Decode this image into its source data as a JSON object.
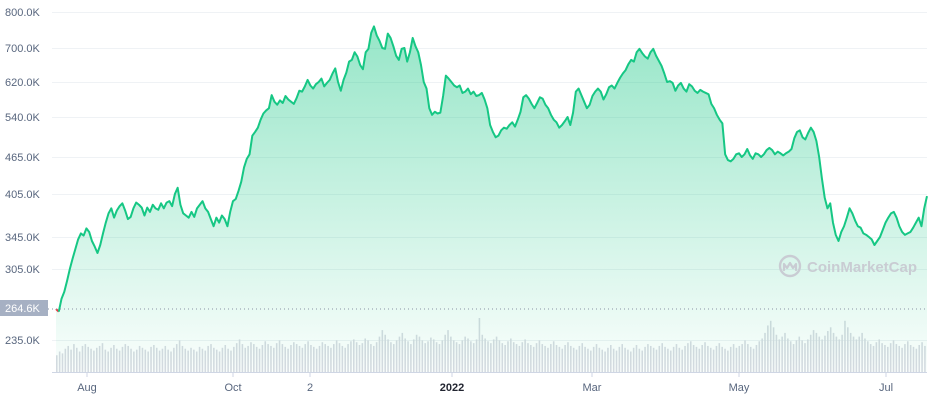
{
  "chart_data": {
    "type": "area",
    "x_tick_labels": [
      "Aug",
      "Oct",
      "2",
      "2022",
      "Mar",
      "May",
      "Jul"
    ],
    "x_tick_bold": [
      "2022"
    ],
    "y_tick_labels": [
      "800.0K",
      "700.0K",
      "620.0K",
      "540.0K",
      "465.0K",
      "405.0K",
      "345.0K",
      "305.0K",
      "235.0K"
    ],
    "current_value_label": "264.6K",
    "watermark": "CoinMarketCap",
    "line_color": "#16c784",
    "down_color": "#ea3943",
    "series": [
      {
        "values": [
          264.6,
          262,
          275,
          282,
          293,
          305,
          318,
          330,
          342,
          350,
          347,
          357,
          352,
          340,
          333,
          325,
          335,
          350,
          365,
          378,
          385,
          372,
          382,
          388,
          392,
          382,
          370,
          373,
          385,
          393,
          390,
          386,
          375,
          386,
          380,
          390,
          385,
          383,
          392,
          385,
          393,
          395,
          388,
          405,
          415,
          390,
          378,
          375,
          372,
          380,
          373,
          385,
          390,
          395,
          385,
          380,
          370,
          360,
          372,
          365,
          375,
          370,
          360,
          380,
          395,
          398,
          410,
          425,
          448,
          462,
          470,
          505,
          512,
          520,
          535,
          548,
          555,
          560,
          590,
          575,
          568,
          578,
          572,
          588,
          580,
          575,
          570,
          583,
          600,
          598,
          610,
          625,
          612,
          605,
          615,
          620,
          628,
          610,
          618,
          625,
          640,
          652,
          620,
          600,
          625,
          642,
          668,
          672,
          690,
          680,
          660,
          650,
          690,
          698,
          742,
          760,
          735,
          720,
          700,
          698,
          740,
          728,
          705,
          682,
          672,
          698,
          700,
          668,
          690,
          728,
          705,
          690,
          660,
          620,
          605,
          560,
          545,
          552,
          548,
          550,
          588,
          635,
          628,
          620,
          612,
          608,
          612,
          595,
          598,
          605,
          592,
          598,
          588,
          590,
          595,
          580,
          560,
          525,
          512,
          502,
          505,
          515,
          520,
          518,
          525,
          530,
          522,
          535,
          552,
          585,
          590,
          582,
          570,
          560,
          572,
          585,
          582,
          568,
          560,
          545,
          535,
          530,
          520,
          525,
          532,
          540,
          525,
          550,
          598,
          605,
          590,
          575,
          560,
          568,
          588,
          598,
          605,
          598,
          580,
          592,
          608,
          612,
          605,
          618,
          630,
          640,
          648,
          662,
          672,
          668,
          690,
          698,
          688,
          680,
          675,
          690,
          698,
          682,
          670,
          658,
          640,
          620,
          622,
          618,
          600,
          612,
          618,
          605,
          598,
          615,
          610,
          600,
          595,
          602,
          598,
          595,
          592,
          570,
          560,
          545,
          535,
          528,
          470,
          460,
          458,
          462,
          470,
          472,
          465,
          470,
          480,
          468,
          462,
          472,
          470,
          465,
          470,
          478,
          482,
          478,
          470,
          475,
          472,
          468,
          472,
          475,
          480,
          500,
          512,
          515,
          502,
          498,
          510,
          520,
          512,
          495,
          465,
          430,
          400,
          385,
          392,
          365,
          348,
          340,
          352,
          360,
          372,
          385,
          378,
          368,
          360,
          358,
          350,
          348,
          345,
          342,
          335,
          340,
          345,
          355,
          365,
          372,
          378,
          380,
          372,
          360,
          352,
          348,
          350,
          352,
          358,
          365,
          372,
          360,
          385,
          402
        ]
      }
    ],
    "volume_bars": [
      18,
      22,
      20,
      25,
      28,
      24,
      30,
      26,
      22,
      28,
      30,
      27,
      25,
      23,
      26,
      28,
      31,
      24,
      22,
      26,
      29,
      25,
      23,
      27,
      30,
      28,
      25,
      22,
      24,
      28,
      26,
      24,
      22,
      27,
      29,
      26,
      23,
      25,
      28,
      24,
      22,
      26,
      30,
      34,
      28,
      25,
      23,
      26,
      24,
      22,
      27,
      25,
      23,
      28,
      30,
      26,
      24,
      22,
      26,
      29,
      25,
      23,
      27,
      31,
      35,
      30,
      26,
      28,
      32,
      30,
      27,
      25,
      29,
      33,
      30,
      28,
      26,
      31,
      34,
      30,
      27,
      25,
      29,
      32,
      30,
      28,
      26,
      30,
      33,
      29,
      27,
      25,
      28,
      32,
      30,
      28,
      26,
      30,
      34,
      31,
      28,
      26,
      30,
      33,
      35,
      32,
      29,
      31,
      36,
      34,
      30,
      28,
      32,
      38,
      45,
      40,
      35,
      32,
      30,
      34,
      38,
      42,
      36,
      33,
      30,
      35,
      40,
      38,
      34,
      31,
      33,
      37,
      35,
      32,
      30,
      34,
      40,
      45,
      38,
      34,
      32,
      30,
      34,
      38,
      36,
      33,
      31,
      35,
      58,
      40,
      36,
      33,
      31,
      35,
      38,
      34,
      31,
      29,
      33,
      36,
      32,
      30,
      28,
      32,
      35,
      31,
      29,
      27,
      31,
      34,
      30,
      28,
      26,
      30,
      33,
      29,
      27,
      25,
      29,
      32,
      28,
      26,
      24,
      28,
      31,
      27,
      25,
      23,
      27,
      30,
      26,
      24,
      22,
      26,
      29,
      25,
      23,
      27,
      30,
      26,
      24,
      22,
      26,
      29,
      25,
      23,
      27,
      30,
      28,
      26,
      24,
      28,
      31,
      27,
      25,
      23,
      27,
      30,
      26,
      24,
      28,
      31,
      33,
      29,
      27,
      25,
      29,
      32,
      28,
      26,
      24,
      28,
      31,
      27,
      25,
      23,
      27,
      30,
      26,
      28,
      30,
      34,
      30,
      27,
      25,
      29,
      33,
      36,
      42,
      50,
      55,
      48,
      40,
      35,
      38,
      42,
      36,
      33,
      30,
      34,
      38,
      34,
      31,
      35,
      40,
      45,
      42,
      38,
      35,
      39,
      44,
      48,
      42,
      38,
      35,
      40,
      55,
      48,
      42,
      38,
      35,
      38,
      42,
      36,
      33,
      30,
      28,
      32,
      35,
      31,
      29,
      27,
      31,
      34,
      30,
      28,
      26,
      30,
      33,
      29,
      27,
      25,
      29,
      32,
      28
    ]
  }
}
